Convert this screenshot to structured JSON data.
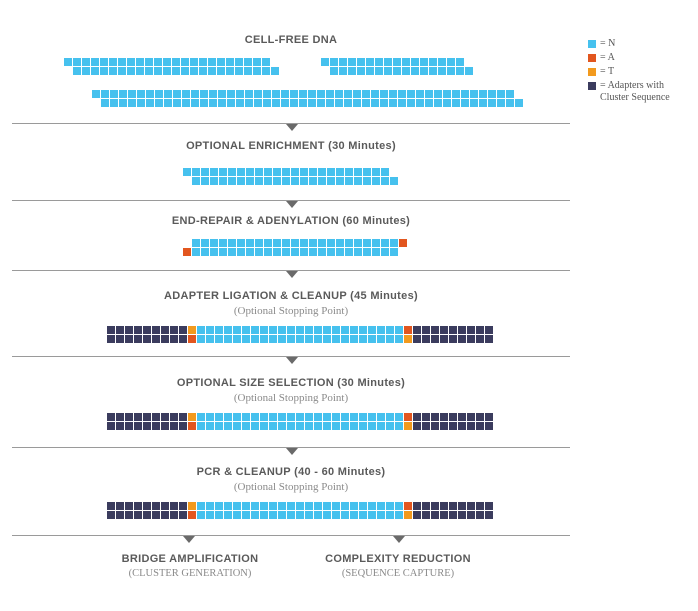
{
  "colors": {
    "N": "#46c1ee",
    "A": "#e2561f",
    "T": "#f29a1e",
    "adapter": "#3b3c5e"
  },
  "legend": [
    {
      "key": "N",
      "icon": "square-swatch-icon",
      "label": "= N"
    },
    {
      "key": "A",
      "icon": "square-swatch-icon",
      "label": "= A"
    },
    {
      "key": "T",
      "icon": "square-swatch-icon",
      "label": "= T"
    },
    {
      "key": "adapter",
      "icon": "square-swatch-icon",
      "label": "= Adapters with Cluster Sequence"
    }
  ],
  "steps": [
    {
      "title": "CELL-FREE DNA",
      "subtitle": ""
    },
    {
      "title": "OPTIONAL ENRICHMENT (30 Minutes)",
      "subtitle": ""
    },
    {
      "title": "END-REPAIR & ADENYLATION (60 Minutes)",
      "subtitle": ""
    },
    {
      "title": "ADAPTER LIGATION & CLEANUP (45 Minutes)",
      "subtitle": "(Optional Stopping Point)"
    },
    {
      "title": "OPTIONAL SIZE SELECTION (30 Minutes)",
      "subtitle": "(Optional Stopping Point)"
    },
    {
      "title": "PCR & CLEANUP (40 - 60 Minutes)",
      "subtitle": "(Optional Stopping Point)"
    }
  ],
  "outputs": [
    {
      "title": "BRIDGE AMPLIFICATION",
      "subtitle": "(CLUSTER GENERATION)"
    },
    {
      "title": "COMPLEXITY REDUCTION",
      "subtitle": "(SEQUENCE CAPTURE)"
    }
  ]
}
